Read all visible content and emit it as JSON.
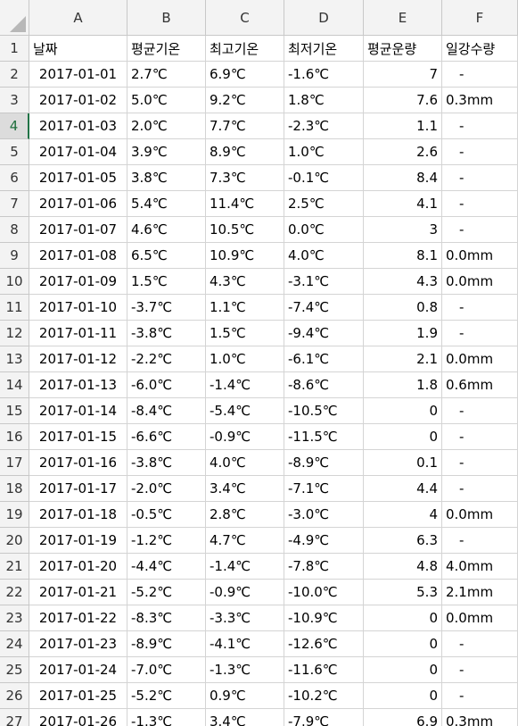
{
  "columns": [
    "A",
    "B",
    "C",
    "D",
    "E",
    "F"
  ],
  "rows": [
    {
      "n": "1",
      "a": "날짜",
      "b": "평균기온",
      "c": "최고기온",
      "d": "최저기온",
      "e": "평균운량",
      "f": "일강수량"
    },
    {
      "n": "2",
      "a": "2017-01-01",
      "b": "2.7℃",
      "c": "6.9℃",
      "d": "-1.6℃",
      "e": "7",
      "f": "-"
    },
    {
      "n": "3",
      "a": "2017-01-02",
      "b": "5.0℃",
      "c": "9.2℃",
      "d": "1.8℃",
      "e": "7.6",
      "f": "0.3mm"
    },
    {
      "n": "4",
      "a": "2017-01-03",
      "b": "2.0℃",
      "c": "7.7℃",
      "d": "-2.3℃",
      "e": "1.1",
      "f": "-"
    },
    {
      "n": "5",
      "a": "2017-01-04",
      "b": "3.9℃",
      "c": "8.9℃",
      "d": "1.0℃",
      "e": "2.6",
      "f": "-"
    },
    {
      "n": "6",
      "a": "2017-01-05",
      "b": "3.8℃",
      "c": "7.3℃",
      "d": "-0.1℃",
      "e": "8.4",
      "f": "-"
    },
    {
      "n": "7",
      "a": "2017-01-06",
      "b": "5.4℃",
      "c": "11.4℃",
      "d": "2.5℃",
      "e": "4.1",
      "f": "-"
    },
    {
      "n": "8",
      "a": "2017-01-07",
      "b": "4.6℃",
      "c": "10.5℃",
      "d": "0.0℃",
      "e": "3",
      "f": "-"
    },
    {
      "n": "9",
      "a": "2017-01-08",
      "b": "6.5℃",
      "c": "10.9℃",
      "d": "4.0℃",
      "e": "8.1",
      "f": "0.0mm"
    },
    {
      "n": "10",
      "a": "2017-01-09",
      "b": "1.5℃",
      "c": "4.3℃",
      "d": "-3.1℃",
      "e": "4.3",
      "f": "0.0mm"
    },
    {
      "n": "11",
      "a": "2017-01-10",
      "b": "-3.7℃",
      "c": "1.1℃",
      "d": "-7.4℃",
      "e": "0.8",
      "f": "-"
    },
    {
      "n": "12",
      "a": "2017-01-11",
      "b": "-3.8℃",
      "c": "1.5℃",
      "d": "-9.4℃",
      "e": "1.9",
      "f": "-"
    },
    {
      "n": "13",
      "a": "2017-01-12",
      "b": "-2.2℃",
      "c": "1.0℃",
      "d": "-6.1℃",
      "e": "2.1",
      "f": "0.0mm"
    },
    {
      "n": "14",
      "a": "2017-01-13",
      "b": "-6.0℃",
      "c": "-1.4℃",
      "d": "-8.6℃",
      "e": "1.8",
      "f": "0.6mm"
    },
    {
      "n": "15",
      "a": "2017-01-14",
      "b": "-8.4℃",
      "c": "-5.4℃",
      "d": "-10.5℃",
      "e": "0",
      "f": "-"
    },
    {
      "n": "16",
      "a": "2017-01-15",
      "b": "-6.6℃",
      "c": "-0.9℃",
      "d": "-11.5℃",
      "e": "0",
      "f": "-"
    },
    {
      "n": "17",
      "a": "2017-01-16",
      "b": "-3.8℃",
      "c": "4.0℃",
      "d": "-8.9℃",
      "e": "0.1",
      "f": "-"
    },
    {
      "n": "18",
      "a": "2017-01-17",
      "b": "-2.0℃",
      "c": "3.4℃",
      "d": "-7.1℃",
      "e": "4.4",
      "f": "-"
    },
    {
      "n": "19",
      "a": "2017-01-18",
      "b": "-0.5℃",
      "c": "2.8℃",
      "d": "-3.0℃",
      "e": "4",
      "f": "0.0mm"
    },
    {
      "n": "20",
      "a": "2017-01-19",
      "b": "-1.2℃",
      "c": "4.7℃",
      "d": "-4.9℃",
      "e": "6.3",
      "f": "-"
    },
    {
      "n": "21",
      "a": "2017-01-20",
      "b": "-4.4℃",
      "c": "-1.4℃",
      "d": "-7.8℃",
      "e": "4.8",
      "f": "4.0mm"
    },
    {
      "n": "22",
      "a": "2017-01-21",
      "b": "-5.2℃",
      "c": "-0.9℃",
      "d": "-10.0℃",
      "e": "5.3",
      "f": "2.1mm"
    },
    {
      "n": "23",
      "a": "2017-01-22",
      "b": "-8.3℃",
      "c": "-3.3℃",
      "d": "-10.9℃",
      "e": "0",
      "f": "0.0mm"
    },
    {
      "n": "24",
      "a": "2017-01-23",
      "b": "-8.9℃",
      "c": "-4.1℃",
      "d": "-12.6℃",
      "e": "0",
      "f": "-"
    },
    {
      "n": "25",
      "a": "2017-01-24",
      "b": "-7.0℃",
      "c": "-1.3℃",
      "d": "-11.6℃",
      "e": "0",
      "f": "-"
    },
    {
      "n": "26",
      "a": "2017-01-25",
      "b": "-5.2℃",
      "c": "0.9℃",
      "d": "-10.2℃",
      "e": "0",
      "f": "-"
    },
    {
      "n": "27",
      "a": "2017-01-26",
      "b": "-1.3℃",
      "c": "3.4℃",
      "d": "-7.9℃",
      "e": "6.9",
      "f": "0.3mm"
    }
  ],
  "active_row": "4",
  "colors": {
    "header_bg": "#f3f3f3",
    "grid": "#d4d4d4",
    "active_accent": "#217346"
  }
}
